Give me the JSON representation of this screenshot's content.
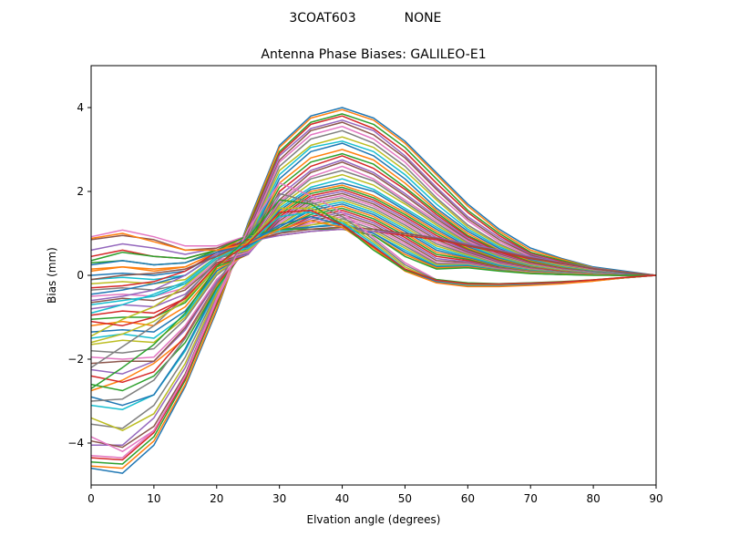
{
  "figure": {
    "suptitle_left": "3COAT603",
    "suptitle_right": "NONE"
  },
  "chart_data": {
    "type": "line",
    "title": "Antenna Phase Biases: GALILEO-E1",
    "xlabel": "Elvation angle (degrees)",
    "ylabel": "Bias (mm)",
    "xlim": [
      0,
      90
    ],
    "ylim": [
      -5,
      5
    ],
    "xticks": [
      0,
      10,
      20,
      30,
      40,
      50,
      60,
      70,
      80,
      90
    ],
    "yticks": [
      -4,
      -2,
      0,
      2,
      4
    ],
    "grid": false,
    "legend": "none",
    "palette": [
      "#1f77b4",
      "#ff7f0e",
      "#2ca02c",
      "#d62728",
      "#9467bd",
      "#8c564b",
      "#e377c2",
      "#7f7f7f",
      "#bcbd22",
      "#17becf"
    ],
    "x": [
      0,
      5,
      10,
      15,
      20,
      25,
      30,
      35,
      40,
      45,
      50,
      55,
      60,
      65,
      70,
      75,
      80,
      85,
      90
    ],
    "series": [
      {
        "values": [
          -4.6,
          -4.72,
          -4.05,
          -2.65,
          -0.85,
          1.25,
          3.1,
          3.8,
          4.0,
          3.75,
          3.2,
          2.45,
          1.7,
          1.1,
          0.65,
          0.4,
          0.2,
          0.1,
          0.0
        ]
      },
      {
        "values": [
          -4.55,
          -4.6,
          -3.95,
          -2.6,
          -0.8,
          1.2,
          3.05,
          3.75,
          3.95,
          3.7,
          3.15,
          2.4,
          1.65,
          1.05,
          0.6,
          0.38,
          0.18,
          0.08,
          0.0
        ]
      },
      {
        "values": [
          -4.45,
          -4.5,
          -3.85,
          -2.5,
          -0.7,
          1.15,
          2.95,
          3.65,
          3.85,
          3.6,
          3.05,
          2.3,
          1.55,
          1.0,
          0.55,
          0.35,
          0.17,
          0.07,
          0.0
        ]
      },
      {
        "values": [
          -4.35,
          -4.4,
          -3.75,
          -2.45,
          -0.65,
          1.1,
          2.9,
          3.6,
          3.8,
          3.5,
          2.95,
          2.2,
          1.5,
          0.95,
          0.52,
          0.32,
          0.15,
          0.06,
          0.0
        ]
      },
      {
        "values": [
          -4.05,
          -4.05,
          -3.4,
          -2.2,
          -0.5,
          1.05,
          2.85,
          3.5,
          3.7,
          3.45,
          2.85,
          2.1,
          1.4,
          0.9,
          0.5,
          0.3,
          0.14,
          0.05,
          0.0
        ]
      },
      {
        "values": [
          -3.95,
          -4.1,
          -3.6,
          -2.35,
          -0.55,
          1.0,
          2.75,
          3.45,
          3.65,
          3.35,
          2.8,
          2.05,
          1.35,
          0.85,
          0.48,
          0.28,
          0.13,
          0.05,
          0.0
        ]
      },
      {
        "values": [
          -3.85,
          -4.2,
          -3.7,
          -2.4,
          -0.6,
          0.95,
          2.7,
          3.35,
          3.55,
          3.25,
          2.7,
          1.95,
          1.3,
          0.8,
          0.45,
          0.26,
          0.12,
          0.04,
          0.0
        ]
      },
      {
        "values": [
          -3.55,
          -3.65,
          -3.1,
          -1.95,
          -0.4,
          0.9,
          2.6,
          3.25,
          3.45,
          3.15,
          2.6,
          1.85,
          1.2,
          0.75,
          0.42,
          0.24,
          0.11,
          0.04,
          0.0
        ]
      },
      {
        "values": [
          -3.4,
          -3.7,
          -3.3,
          -2.1,
          -0.45,
          0.85,
          2.5,
          3.1,
          3.3,
          3.05,
          2.5,
          1.8,
          1.15,
          0.72,
          0.4,
          0.22,
          0.1,
          0.03,
          0.0
        ]
      },
      {
        "values": [
          -3.1,
          -3.2,
          -2.85,
          -1.8,
          -0.35,
          0.8,
          2.4,
          3.05,
          3.2,
          2.95,
          2.4,
          1.7,
          1.1,
          0.68,
          0.38,
          0.2,
          0.09,
          0.03,
          0.0
        ]
      },
      {
        "values": [
          -2.9,
          -3.1,
          -2.85,
          -1.75,
          -0.3,
          0.75,
          2.3,
          2.95,
          3.15,
          2.85,
          2.3,
          1.6,
          1.05,
          0.64,
          0.36,
          0.19,
          0.09,
          0.03,
          0.0
        ]
      },
      {
        "values": [
          -2.75,
          -2.5,
          -2.1,
          -1.5,
          -0.25,
          0.7,
          2.2,
          2.8,
          3.0,
          2.75,
          2.2,
          1.55,
          1.0,
          0.6,
          0.34,
          0.18,
          0.08,
          0.02,
          0.0
        ]
      },
      {
        "values": [
          -2.6,
          -2.75,
          -2.4,
          -1.6,
          -0.3,
          0.7,
          2.1,
          2.7,
          2.9,
          2.65,
          2.1,
          1.5,
          0.95,
          0.58,
          0.32,
          0.17,
          0.08,
          0.02,
          0.0
        ]
      },
      {
        "values": [
          -2.4,
          -2.55,
          -2.3,
          -1.45,
          -0.2,
          0.65,
          2.0,
          2.6,
          2.85,
          2.55,
          2.05,
          1.45,
          0.92,
          0.55,
          0.3,
          0.16,
          0.07,
          0.02,
          0.0
        ]
      },
      {
        "values": [
          -2.25,
          -2.35,
          -2.05,
          -1.3,
          -0.15,
          0.65,
          1.9,
          2.5,
          2.75,
          2.45,
          1.95,
          1.4,
          0.88,
          0.52,
          0.28,
          0.15,
          0.07,
          0.02,
          0.0
        ]
      },
      {
        "values": [
          -2.1,
          -2.05,
          -2.05,
          -1.25,
          -0.1,
          0.6,
          1.8,
          2.45,
          2.7,
          2.4,
          1.9,
          1.35,
          0.85,
          0.5,
          0.27,
          0.14,
          0.06,
          0.02,
          0.0
        ]
      },
      {
        "values": [
          -1.95,
          -2.0,
          -1.95,
          -1.2,
          -0.1,
          0.6,
          1.75,
          2.35,
          2.6,
          2.3,
          1.8,
          1.3,
          0.82,
          0.48,
          0.26,
          0.13,
          0.06,
          0.02,
          0.0
        ]
      },
      {
        "values": [
          -1.8,
          -1.85,
          -1.75,
          -1.05,
          0.0,
          0.6,
          1.7,
          2.3,
          2.5,
          2.25,
          1.75,
          1.25,
          0.78,
          0.46,
          0.25,
          0.12,
          0.05,
          0.01,
          0.0
        ]
      },
      {
        "values": [
          -1.65,
          -1.55,
          -1.6,
          -1.0,
          0.05,
          0.55,
          1.65,
          2.2,
          2.4,
          2.15,
          1.7,
          1.2,
          0.75,
          0.44,
          0.24,
          0.12,
          0.05,
          0.01,
          0.0
        ]
      },
      {
        "values": [
          -1.5,
          -1.4,
          -1.5,
          -0.95,
          0.1,
          0.55,
          1.6,
          2.1,
          2.3,
          2.05,
          1.6,
          1.15,
          0.72,
          0.42,
          0.22,
          0.11,
          0.05,
          0.01,
          0.0
        ]
      },
      {
        "values": [
          -1.35,
          -1.3,
          -1.35,
          -0.85,
          0.1,
          0.55,
          1.55,
          2.05,
          2.2,
          2.0,
          1.55,
          1.1,
          0.68,
          0.4,
          0.21,
          0.1,
          0.04,
          0.01,
          0.0
        ]
      },
      {
        "values": [
          -1.2,
          -1.1,
          -1.2,
          -0.75,
          0.15,
          0.5,
          1.5,
          2.0,
          2.15,
          1.9,
          1.5,
          1.05,
          0.65,
          0.38,
          0.2,
          0.1,
          0.04,
          0.01,
          0.0
        ]
      },
      {
        "values": [
          -1.05,
          -1.0,
          -1.0,
          -0.65,
          0.2,
          0.5,
          1.45,
          1.95,
          2.1,
          1.85,
          1.45,
          1.0,
          0.62,
          0.36,
          0.19,
          0.09,
          0.04,
          0.01,
          0.0
        ]
      },
      {
        "values": [
          -0.95,
          -0.85,
          -0.9,
          -0.55,
          0.25,
          0.5,
          1.4,
          1.9,
          2.05,
          1.8,
          1.4,
          0.95,
          0.6,
          0.34,
          0.18,
          0.09,
          0.03,
          0.01,
          0.0
        ]
      },
      {
        "values": [
          -0.8,
          -0.7,
          -0.75,
          -0.45,
          0.3,
          0.5,
          1.35,
          1.85,
          2.0,
          1.75,
          1.35,
          0.9,
          0.58,
          0.32,
          0.17,
          0.08,
          0.03,
          0.01,
          0.0
        ]
      },
      {
        "values": [
          -0.65,
          -0.55,
          -0.6,
          -0.35,
          0.3,
          0.55,
          1.3,
          1.8,
          1.95,
          1.7,
          1.3,
          0.85,
          0.55,
          0.3,
          0.16,
          0.08,
          0.03,
          0.0,
          0.0
        ]
      },
      {
        "values": [
          -0.5,
          -0.45,
          -0.5,
          -0.3,
          0.35,
          0.55,
          1.25,
          1.75,
          1.9,
          1.65,
          1.25,
          0.8,
          0.52,
          0.28,
          0.15,
          0.07,
          0.03,
          0.0,
          0.0
        ]
      },
      {
        "values": [
          -0.35,
          -0.3,
          -0.35,
          -0.2,
          0.4,
          0.6,
          1.2,
          1.7,
          1.85,
          1.6,
          1.2,
          0.75,
          0.5,
          0.26,
          0.14,
          0.07,
          0.02,
          0.0,
          0.0
        ]
      },
      {
        "values": [
          -0.2,
          -0.15,
          -0.2,
          -0.1,
          0.45,
          0.6,
          1.2,
          1.65,
          1.8,
          1.55,
          1.15,
          0.7,
          0.48,
          0.25,
          0.13,
          0.06,
          0.02,
          0.0,
          0.0
        ]
      },
      {
        "values": [
          -0.1,
          -0.05,
          -0.1,
          0.0,
          0.5,
          0.65,
          1.15,
          1.6,
          1.75,
          1.5,
          1.1,
          0.65,
          0.45,
          0.24,
          0.12,
          0.06,
          0.02,
          0.0,
          0.0
        ]
      },
      {
        "values": [
          0.0,
          0.05,
          0.0,
          0.1,
          0.5,
          0.7,
          1.15,
          1.55,
          1.7,
          1.45,
          1.05,
          0.6,
          0.42,
          0.22,
          0.11,
          0.05,
          0.02,
          0.0,
          0.0
        ]
      },
      {
        "values": [
          0.15,
          0.2,
          0.1,
          0.2,
          0.55,
          0.75,
          1.1,
          1.5,
          1.65,
          1.4,
          1.0,
          0.55,
          0.4,
          0.2,
          0.1,
          0.05,
          0.02,
          0.0,
          0.0
        ]
      },
      {
        "values": [
          0.3,
          0.35,
          0.25,
          0.3,
          0.6,
          0.8,
          1.1,
          1.45,
          1.6,
          1.35,
          0.95,
          0.5,
          0.38,
          0.19,
          0.09,
          0.04,
          0.01,
          0.0,
          0.0
        ]
      },
      {
        "values": [
          0.45,
          0.6,
          0.45,
          0.4,
          0.6,
          0.85,
          1.05,
          1.4,
          1.55,
          1.3,
          0.9,
          0.45,
          0.35,
          0.18,
          0.08,
          0.04,
          0.01,
          0.0,
          0.0
        ]
      },
      {
        "values": [
          0.6,
          0.75,
          0.65,
          0.5,
          0.65,
          0.9,
          1.05,
          1.35,
          1.5,
          1.25,
          0.85,
          0.4,
          0.32,
          0.17,
          0.08,
          0.04,
          0.01,
          0.0,
          0.0
        ]
      },
      {
        "values": [
          0.85,
          0.95,
          0.85,
          0.6,
          0.65,
          0.95,
          1.0,
          1.3,
          1.45,
          1.2,
          0.8,
          0.35,
          0.3,
          0.16,
          0.07,
          0.03,
          0.01,
          0.0,
          0.0
        ]
      },
      {
        "values": [
          0.92,
          1.08,
          0.92,
          0.7,
          0.7,
          0.95,
          1.0,
          1.25,
          1.4,
          1.15,
          0.75,
          0.3,
          0.28,
          0.15,
          0.07,
          0.03,
          0.01,
          0.0,
          0.0
        ]
      },
      {
        "values": [
          -2.2,
          -1.7,
          -1.2,
          -0.5,
          0.35,
          0.8,
          1.0,
          1.2,
          1.35,
          1.1,
          0.7,
          0.28,
          0.26,
          0.14,
          0.06,
          0.03,
          0.01,
          0.0,
          0.0
        ]
      },
      {
        "values": [
          -1.45,
          -1.05,
          -0.75,
          -0.25,
          0.4,
          0.85,
          1.05,
          1.2,
          1.3,
          1.05,
          0.65,
          0.25,
          0.25,
          0.13,
          0.06,
          0.03,
          0.01,
          0.0,
          0.0
        ]
      },
      {
        "values": [
          -0.9,
          -0.7,
          -0.45,
          -0.15,
          0.45,
          0.9,
          1.05,
          1.15,
          1.25,
          1.0,
          0.6,
          0.22,
          0.24,
          0.12,
          0.05,
          0.02,
          0.01,
          0.0,
          0.0
        ]
      },
      {
        "values": [
          -0.45,
          -0.35,
          -0.2,
          0.0,
          0.5,
          0.9,
          1.1,
          1.15,
          1.2,
          1.0,
          0.55,
          0.2,
          0.22,
          0.12,
          0.05,
          0.02,
          0.01,
          0.0,
          0.0
        ]
      },
      {
        "values": [
          0.1,
          0.2,
          0.15,
          0.2,
          0.55,
          0.95,
          1.1,
          1.1,
          1.15,
          0.95,
          0.5,
          0.18,
          0.2,
          0.11,
          0.05,
          0.02,
          0.01,
          0.0,
          0.0
        ]
      },
      {
        "values": [
          0.35,
          0.55,
          0.45,
          0.4,
          0.6,
          0.95,
          1.1,
          1.1,
          1.1,
          0.95,
          0.45,
          0.15,
          0.18,
          0.1,
          0.04,
          0.02,
          0.0,
          0.0,
          0.0
        ]
      },
      {
        "values": [
          -0.3,
          -0.25,
          -0.15,
          0.1,
          0.55,
          0.85,
          0.95,
          1.05,
          1.1,
          1.05,
          0.95,
          0.85,
          0.7,
          0.55,
          0.4,
          0.28,
          0.16,
          0.07,
          0.0
        ]
      },
      {
        "values": [
          -0.6,
          -0.5,
          -0.35,
          0.0,
          0.5,
          0.8,
          0.95,
          1.05,
          1.1,
          1.05,
          1.0,
          0.9,
          0.75,
          0.6,
          0.45,
          0.3,
          0.17,
          0.07,
          0.0
        ]
      },
      {
        "values": [
          -0.1,
          0.0,
          0.05,
          0.15,
          0.45,
          0.8,
          1.0,
          1.1,
          1.15,
          1.1,
          1.0,
          0.88,
          0.72,
          0.58,
          0.42,
          0.29,
          0.16,
          0.07,
          0.0
        ]
      },
      {
        "values": [
          -4.3,
          -4.35,
          -3.7,
          -2.4,
          -0.55,
          1.1,
          2.2,
          1.9,
          1.5,
          0.9,
          0.3,
          -0.1,
          -0.2,
          -0.2,
          -0.18,
          -0.16,
          -0.12,
          -0.06,
          0.0
        ]
      },
      {
        "values": [
          -3.0,
          -2.95,
          -2.5,
          -1.5,
          -0.2,
          0.95,
          1.95,
          1.75,
          1.4,
          0.85,
          0.25,
          -0.12,
          -0.22,
          -0.22,
          -0.2,
          -0.17,
          -0.12,
          -0.06,
          0.0
        ]
      },
      {
        "values": [
          -1.6,
          -1.4,
          -1.1,
          -0.6,
          0.2,
          0.8,
          1.6,
          1.6,
          1.3,
          0.8,
          0.2,
          -0.14,
          -0.24,
          -0.24,
          -0.21,
          -0.18,
          -0.13,
          -0.06,
          0.0
        ]
      },
      {
        "values": [
          -0.7,
          -0.6,
          -0.5,
          -0.2,
          0.4,
          0.75,
          1.4,
          1.5,
          1.25,
          0.75,
          0.15,
          -0.15,
          -0.25,
          -0.25,
          -0.22,
          -0.18,
          -0.13,
          -0.06,
          0.0
        ]
      },
      {
        "values": [
          0.25,
          0.35,
          0.25,
          0.3,
          0.55,
          0.75,
          1.2,
          1.4,
          1.2,
          0.7,
          0.12,
          -0.16,
          -0.26,
          -0.26,
          -0.23,
          -0.19,
          -0.13,
          -0.06,
          0.0
        ]
      },
      {
        "values": [
          0.88,
          1.0,
          0.8,
          0.6,
          0.6,
          0.75,
          1.1,
          1.3,
          1.15,
          0.65,
          0.1,
          -0.18,
          -0.27,
          -0.27,
          -0.24,
          -0.2,
          -0.14,
          -0.06,
          0.0
        ]
      },
      {
        "values": [
          -2.7,
          -2.2,
          -1.65,
          -0.9,
          0.2,
          0.9,
          1.8,
          1.7,
          1.2,
          0.6,
          0.12,
          -0.1,
          -0.18,
          -0.2,
          -0.18,
          -0.15,
          -0.11,
          -0.05,
          0.0
        ]
      },
      {
        "values": [
          -1.1,
          -1.2,
          -1.0,
          -0.55,
          0.25,
          0.75,
          1.5,
          1.55,
          1.2,
          0.68,
          0.15,
          -0.12,
          -0.2,
          -0.21,
          -0.19,
          -0.16,
          -0.11,
          -0.05,
          0.0
        ]
      }
    ]
  }
}
